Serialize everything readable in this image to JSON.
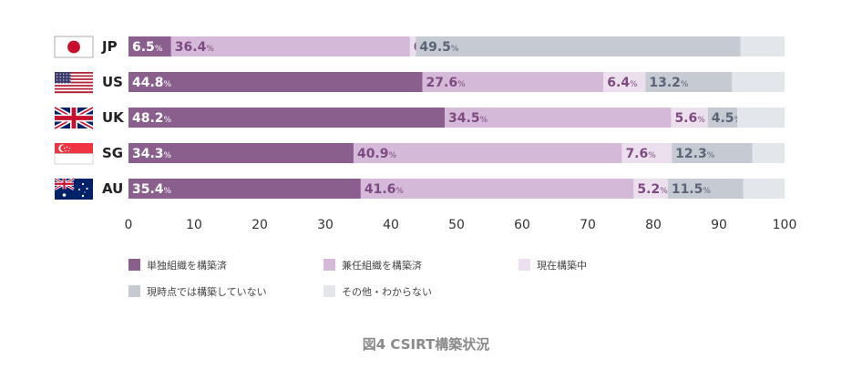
{
  "chart_data": {
    "type": "bar",
    "orientation": "horizontal",
    "stacked": true,
    "categories": [
      "JP",
      "US",
      "UK",
      "SG",
      "AU"
    ],
    "series": [
      {
        "name": "単独組織を構築済",
        "color": "#8a5f8e",
        "values": [
          6.5,
          44.8,
          48.2,
          34.3,
          35.4
        ]
      },
      {
        "name": "兼任組織を構築済",
        "color": "#d5b9d8",
        "values": [
          36.4,
          27.6,
          34.5,
          40.9,
          41.6
        ]
      },
      {
        "name": "現在構築中",
        "color": "#ede0ee",
        "values": [
          0.9,
          6.4,
          5.6,
          7.6,
          5.2
        ]
      },
      {
        "name": "現時点では構築していない",
        "color": "#c6cbd3",
        "values": [
          49.5,
          13.2,
          4.5,
          12.3,
          11.5
        ]
      },
      {
        "name": "その他・わからない",
        "color": "#e3e6ea",
        "values": [
          6.7,
          8.0,
          7.2,
          4.9,
          6.3
        ]
      }
    ],
    "data_labels": {
      "unit": "%",
      "shown_series": [
        0,
        1,
        2,
        3
      ]
    },
    "xlim": [
      0,
      100
    ],
    "xticks": [
      "0",
      "10",
      "20",
      "30",
      "40",
      "50",
      "60",
      "70",
      "80",
      "90",
      "100"
    ],
    "legend_position": "bottom",
    "title": "図4 CSIRT構築状況"
  },
  "flags": [
    "jp-flag-icon",
    "us-flag-icon",
    "uk-flag-icon",
    "sg-flag-icon",
    "au-flag-icon"
  ]
}
